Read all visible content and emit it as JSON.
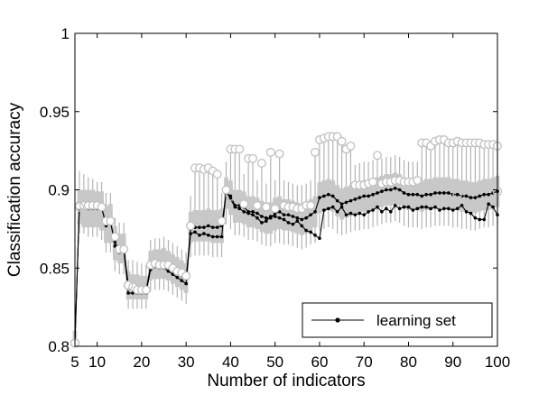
{
  "chart_data": {
    "type": "line",
    "xlabel": "Number of indicators",
    "ylabel": "Classification accuracy",
    "xlim": [
      5,
      100
    ],
    "ylim": [
      0.8,
      1.0
    ],
    "xticks": [
      5,
      10,
      20,
      30,
      40,
      50,
      60,
      70,
      80,
      90,
      100
    ],
    "xtick_labels": [
      "5",
      "10",
      "20",
      "30",
      "40",
      "50",
      "60",
      "70",
      "80",
      "90",
      "100"
    ],
    "yticks": [
      0.8,
      0.85,
      0.9,
      0.95,
      1.0
    ],
    "ytick_labels": [
      "0.8",
      "0.85",
      "0.9",
      "0.95",
      "1"
    ],
    "grid": false,
    "legend": {
      "position": "bottom-right",
      "entries": [
        "learning set"
      ]
    },
    "x": [
      5,
      6,
      7,
      8,
      9,
      10,
      11,
      12,
      13,
      14,
      15,
      16,
      17,
      18,
      19,
      20,
      21,
      22,
      23,
      24,
      25,
      26,
      27,
      28,
      29,
      30,
      31,
      32,
      33,
      34,
      35,
      36,
      37,
      38,
      39,
      40,
      41,
      42,
      43,
      44,
      45,
      46,
      47,
      48,
      49,
      50,
      51,
      52,
      53,
      54,
      55,
      56,
      57,
      58,
      59,
      60,
      61,
      62,
      63,
      64,
      65,
      66,
      67,
      68,
      69,
      70,
      71,
      72,
      73,
      74,
      75,
      76,
      77,
      78,
      79,
      80,
      81,
      82,
      83,
      84,
      85,
      86,
      87,
      88,
      89,
      90,
      91,
      92,
      93,
      94,
      95,
      96,
      97,
      98,
      99,
      100
    ],
    "series": [
      {
        "name": "learning set",
        "marker": "dot-line",
        "color": "#000000",
        "values": [
          0.802,
          0.889,
          0.889,
          0.888,
          0.888,
          0.888,
          0.888,
          0.879,
          0.88,
          0.864,
          0.862,
          0.863,
          0.839,
          0.837,
          0.837,
          0.836,
          0.836,
          0.851,
          0.852,
          0.852,
          0.853,
          0.851,
          0.849,
          0.847,
          0.845,
          0.843,
          0.875,
          0.876,
          0.876,
          0.876,
          0.877,
          0.876,
          0.876,
          0.877,
          0.898,
          0.896,
          0.89,
          0.89,
          0.889,
          0.886,
          0.886,
          0.885,
          0.883,
          0.882,
          0.882,
          0.885,
          0.886,
          0.884,
          0.884,
          0.883,
          0.882,
          0.881,
          0.882,
          0.884,
          0.886,
          0.895,
          0.896,
          0.897,
          0.896,
          0.893,
          0.891,
          0.892,
          0.893,
          0.894,
          0.895,
          0.896,
          0.896,
          0.897,
          0.898,
          0.899,
          0.9,
          0.9,
          0.901,
          0.9,
          0.898,
          0.897,
          0.897,
          0.897,
          0.896,
          0.897,
          0.897,
          0.898,
          0.898,
          0.898,
          0.898,
          0.897,
          0.897,
          0.896,
          0.896,
          0.895,
          0.895,
          0.896,
          0.897,
          0.897,
          0.898,
          0.899
        ]
      },
      {
        "name": "",
        "marker": "dot-line",
        "color": "#000000",
        "values": [
          0.802,
          0.89,
          0.889,
          0.889,
          0.89,
          0.889,
          0.889,
          0.877,
          0.879,
          0.867,
          0.86,
          0.861,
          0.834,
          0.834,
          0.834,
          0.834,
          0.834,
          0.849,
          0.851,
          0.85,
          0.85,
          0.848,
          0.846,
          0.844,
          0.842,
          0.84,
          0.872,
          0.873,
          0.871,
          0.872,
          0.871,
          0.87,
          0.87,
          0.87,
          0.899,
          0.894,
          0.889,
          0.888,
          0.886,
          0.885,
          0.884,
          0.882,
          0.879,
          0.88,
          0.883,
          0.883,
          0.882,
          0.881,
          0.879,
          0.878,
          0.88,
          0.877,
          0.874,
          0.873,
          0.871,
          0.869,
          0.887,
          0.888,
          0.889,
          0.886,
          0.889,
          0.884,
          0.885,
          0.884,
          0.885,
          0.884,
          0.886,
          0.887,
          0.889,
          0.886,
          0.888,
          0.886,
          0.89,
          0.888,
          0.889,
          0.889,
          0.887,
          0.888,
          0.889,
          0.889,
          0.888,
          0.889,
          0.887,
          0.888,
          0.888,
          0.887,
          0.888,
          0.89,
          0.886,
          0.885,
          0.882,
          0.881,
          0.881,
          0.891,
          0.889,
          0.884
        ]
      },
      {
        "name": "",
        "marker": "open-circle",
        "color": "#c0c0c0",
        "values": [
          0.802,
          0.89,
          0.89,
          0.89,
          0.89,
          0.89,
          0.889,
          0.88,
          0.88,
          0.87,
          0.862,
          0.862,
          0.839,
          0.838,
          0.836,
          0.836,
          0.836,
          0.852,
          0.853,
          0.852,
          0.852,
          0.852,
          0.85,
          0.848,
          0.847,
          0.845,
          0.877,
          0.914,
          0.914,
          0.913,
          0.914,
          0.912,
          0.91,
          0.88,
          0.9,
          0.926,
          0.926,
          0.926,
          0.891,
          0.92,
          0.92,
          0.89,
          0.917,
          0.889,
          0.924,
          0.888,
          0.923,
          0.89,
          0.889,
          0.889,
          0.888,
          0.888,
          0.89,
          0.89,
          0.924,
          0.932,
          0.933,
          0.934,
          0.934,
          0.934,
          0.931,
          0.926,
          0.928,
          0.903,
          0.903,
          0.903,
          0.904,
          0.905,
          0.922,
          0.904,
          0.905,
          0.905,
          0.906,
          0.906,
          0.905,
          0.905,
          0.905,
          0.906,
          0.93,
          0.93,
          0.928,
          0.931,
          0.932,
          0.932,
          0.93,
          0.93,
          0.931,
          0.93,
          0.93,
          0.93,
          0.93,
          0.93,
          0.929,
          0.929,
          0.929,
          0.928
        ]
      }
    ],
    "band": {
      "color": "#c8c8c8",
      "lower": [
        0.8,
        0.878,
        0.876,
        0.876,
        0.876,
        0.876,
        0.874,
        0.866,
        0.866,
        0.855,
        0.853,
        0.853,
        0.83,
        0.83,
        0.83,
        0.83,
        0.83,
        0.842,
        0.843,
        0.843,
        0.843,
        0.842,
        0.84,
        0.838,
        0.836,
        0.834,
        0.866,
        0.867,
        0.867,
        0.867,
        0.867,
        0.866,
        0.866,
        0.866,
        0.888,
        0.884,
        0.879,
        0.879,
        0.878,
        0.876,
        0.876,
        0.875,
        0.873,
        0.872,
        0.872,
        0.874,
        0.875,
        0.874,
        0.874,
        0.873,
        0.872,
        0.871,
        0.872,
        0.874,
        0.876,
        0.885,
        0.886,
        0.887,
        0.886,
        0.883,
        0.881,
        0.882,
        0.883,
        0.884,
        0.885,
        0.886,
        0.886,
        0.887,
        0.888,
        0.889,
        0.89,
        0.89,
        0.891,
        0.89,
        0.888,
        0.887,
        0.887,
        0.887,
        0.886,
        0.887,
        0.887,
        0.888,
        0.888,
        0.888,
        0.888,
        0.887,
        0.887,
        0.886,
        0.886,
        0.885,
        0.885,
        0.886,
        0.887,
        0.887,
        0.888,
        0.889
      ],
      "upper": [
        0.81,
        0.9,
        0.9,
        0.9,
        0.9,
        0.899,
        0.899,
        0.89,
        0.891,
        0.877,
        0.872,
        0.872,
        0.848,
        0.846,
        0.846,
        0.845,
        0.845,
        0.861,
        0.862,
        0.862,
        0.863,
        0.861,
        0.859,
        0.857,
        0.855,
        0.853,
        0.886,
        0.887,
        0.887,
        0.887,
        0.888,
        0.887,
        0.887,
        0.888,
        0.908,
        0.906,
        0.9,
        0.9,
        0.899,
        0.896,
        0.896,
        0.895,
        0.893,
        0.892,
        0.892,
        0.895,
        0.896,
        0.894,
        0.894,
        0.893,
        0.892,
        0.891,
        0.892,
        0.894,
        0.896,
        0.905,
        0.906,
        0.907,
        0.906,
        0.903,
        0.901,
        0.902,
        0.903,
        0.904,
        0.905,
        0.906,
        0.906,
        0.907,
        0.908,
        0.909,
        0.91,
        0.91,
        0.911,
        0.91,
        0.908,
        0.907,
        0.907,
        0.907,
        0.906,
        0.907,
        0.907,
        0.908,
        0.908,
        0.908,
        0.908,
        0.907,
        0.907,
        0.906,
        0.906,
        0.905,
        0.905,
        0.906,
        0.907,
        0.907,
        0.908,
        0.909
      ]
    },
    "whisker_range": {
      "color": "#b4b4b4",
      "low": [
        0.8,
        0.872,
        0.872,
        0.87,
        0.87,
        0.87,
        0.868,
        0.86,
        0.86,
        0.848,
        0.846,
        0.846,
        0.824,
        0.824,
        0.824,
        0.824,
        0.824,
        0.835,
        0.836,
        0.836,
        0.836,
        0.835,
        0.833,
        0.831,
        0.829,
        0.827,
        0.857,
        0.858,
        0.858,
        0.858,
        0.858,
        0.857,
        0.857,
        0.857,
        0.878,
        0.875,
        0.871,
        0.871,
        0.87,
        0.868,
        0.868,
        0.867,
        0.865,
        0.864,
        0.864,
        0.866,
        0.866,
        0.865,
        0.865,
        0.864,
        0.863,
        0.862,
        0.863,
        0.865,
        0.866,
        0.874,
        0.875,
        0.876,
        0.875,
        0.872,
        0.871,
        0.872,
        0.873,
        0.874,
        0.874,
        0.875,
        0.875,
        0.876,
        0.877,
        0.878,
        0.879,
        0.879,
        0.88,
        0.879,
        0.877,
        0.876,
        0.876,
        0.876,
        0.875,
        0.876,
        0.876,
        0.877,
        0.877,
        0.877,
        0.877,
        0.876,
        0.876,
        0.875,
        0.875,
        0.874,
        0.874,
        0.875,
        0.876,
        0.876,
        0.877,
        0.878
      ],
      "high": [
        0.812,
        0.912,
        0.91,
        0.908,
        0.907,
        0.905,
        0.905,
        0.898,
        0.898,
        0.882,
        0.879,
        0.879,
        0.855,
        0.855,
        0.854,
        0.853,
        0.852,
        0.868,
        0.869,
        0.869,
        0.87,
        0.868,
        0.866,
        0.864,
        0.862,
        0.86,
        0.896,
        0.912,
        0.912,
        0.911,
        0.912,
        0.91,
        0.908,
        0.898,
        0.918,
        0.924,
        0.924,
        0.924,
        0.91,
        0.918,
        0.918,
        0.906,
        0.915,
        0.904,
        0.922,
        0.906,
        0.921,
        0.906,
        0.905,
        0.904,
        0.903,
        0.903,
        0.904,
        0.906,
        0.922,
        0.93,
        0.931,
        0.932,
        0.932,
        0.932,
        0.929,
        0.924,
        0.926,
        0.916,
        0.917,
        0.918,
        0.918,
        0.919,
        0.92,
        0.92,
        0.921,
        0.921,
        0.922,
        0.921,
        0.919,
        0.918,
        0.918,
        0.918,
        0.928,
        0.928,
        0.926,
        0.929,
        0.93,
        0.93,
        0.928,
        0.928,
        0.929,
        0.928,
        0.928,
        0.928,
        0.928,
        0.928,
        0.927,
        0.927,
        0.927,
        0.926
      ]
    }
  }
}
